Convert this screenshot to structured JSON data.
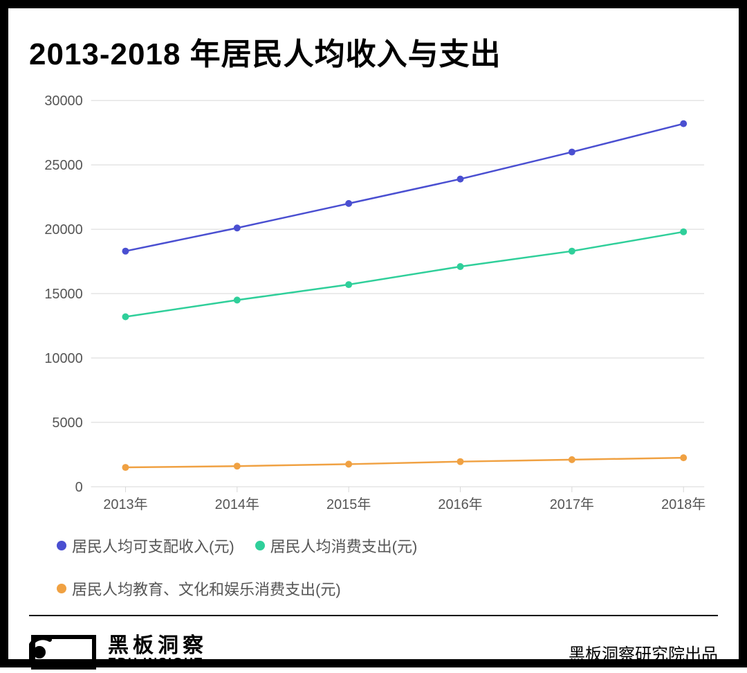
{
  "title": "2013-2018 年居民人均收入与支出",
  "chart": {
    "type": "line",
    "background_color": "#ffffff",
    "grid_color": "#d7d7d7",
    "axis_text_color": "#555555",
    "axis_font_size": 20,
    "title_fontsize": 44,
    "line_width": 2.5,
    "marker_radius": 5,
    "x_labels": [
      "2013年",
      "2014年",
      "2015年",
      "2016年",
      "2017年",
      "2018年"
    ],
    "y_min": 0,
    "y_max": 30000,
    "y_tick_step": 5000,
    "y_ticks": [
      0,
      5000,
      10000,
      15000,
      20000,
      25000,
      30000
    ],
    "series": [
      {
        "name": "居民人均可支配收入(元)",
        "color": "#4a4fd1",
        "values": [
          18300,
          20100,
          22000,
          23900,
          26000,
          28200
        ]
      },
      {
        "name": "居民人均消费支出(元)",
        "color": "#2fcf9a",
        "values": [
          13200,
          14500,
          15700,
          17100,
          18300,
          19800
        ]
      },
      {
        "name": "居民人均教育、文化和娱乐消费支出(元)",
        "color": "#f0a142",
        "values": [
          1500,
          1600,
          1750,
          1950,
          2100,
          2250
        ]
      }
    ]
  },
  "legend": {
    "font_size": 22,
    "text_color": "#555555",
    "dot_size": 14,
    "items": [
      {
        "label": "居民人均可支配收入(元)",
        "color": "#4a4fd1"
      },
      {
        "label": "居民人均消费支出(元)",
        "color": "#2fcf9a"
      },
      {
        "label": "居民人均教育、文化和娱乐消费支出(元)",
        "color": "#f0a142"
      }
    ]
  },
  "footer": {
    "brand_cn": "黑板洞察",
    "brand_en": "EDU INSIGHT",
    "credit": "黑板洞察研究院出品"
  }
}
